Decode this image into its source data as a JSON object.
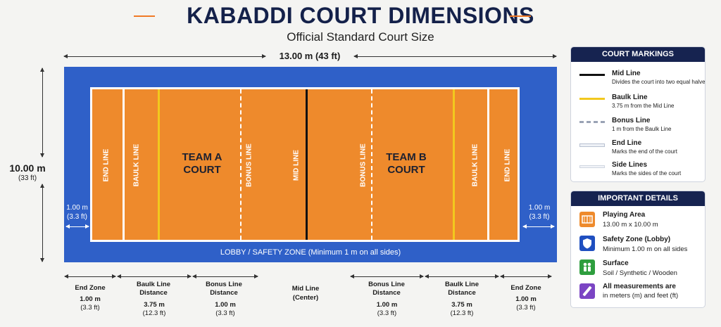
{
  "header": {
    "title": "KABADDI COURT DIMENSIONS",
    "subtitle": "Official Standard Court Size"
  },
  "dimensions": {
    "length": "13.00 m (43 ft)",
    "width_value": "10.00 m",
    "width_ft": "(33 ft)",
    "lobby_left_m": "1.00 m",
    "lobby_left_ft": "(3.3 ft)",
    "lobby_right_m": "1.00 m",
    "lobby_right_ft": "(3.3 ft)"
  },
  "court": {
    "lines": {
      "end_left": "END LINE",
      "baulk_left": "BAULK LINE",
      "bonus_left": "BONUS LINE",
      "mid": "MID LINE",
      "bonus_right": "BONUS LINE",
      "baulk_right": "BAULK LINE",
      "end_right": "END LINE"
    },
    "team_a": "TEAM A COURT",
    "team_b": "TEAM B COURT",
    "lobby": "LOBBY / SAFETY ZONE (Minimum 1 m on all sides)",
    "colors": {
      "lobby": "#2f60c8",
      "playing_area": "#ee8a2c",
      "mid_line": "#111111",
      "baulk_line": "#f2c81e",
      "boundary": "#ffffff"
    }
  },
  "segments": [
    {
      "label": "End Zone",
      "value": "1.00 m",
      "ft": "(3.3 ft)"
    },
    {
      "label": "Baulk Line Distance",
      "value": "3.75 m",
      "ft": "(12.3 ft)"
    },
    {
      "label": "Bonus Line Distance",
      "value": "1.00 m",
      "ft": "(3.3 ft)"
    },
    {
      "label": "Mid Line",
      "sub": "(Center)"
    },
    {
      "label": "Bonus Line Distance",
      "value": "1.00 m",
      "ft": "(3.3 ft)"
    },
    {
      "label": "Baulk Line Distance",
      "value": "3.75 m",
      "ft": "(12.3 ft)"
    },
    {
      "label": "End Zone",
      "value": "1.00 m",
      "ft": "(3.3 ft)"
    }
  ],
  "legend": {
    "title": "COURT MARKINGS",
    "items": [
      {
        "name": "Mid Line",
        "desc": "Divides the court into two equal halves",
        "color": "#111111"
      },
      {
        "name": "Baulk Line",
        "desc": "3.75 m from the Mid Line",
        "color": "#f2c81e"
      },
      {
        "name": "Bonus Line",
        "desc": "1 m from the Baulk Line",
        "color": "#9aa3b5"
      },
      {
        "name": "End Line",
        "desc": "Marks the end of the court",
        "color": "#b8c0d0"
      },
      {
        "name": "Side Lines",
        "desc": "Marks the sides of the court",
        "color": "#cfd5e0"
      }
    ]
  },
  "details": {
    "title": "IMPORTANT DETAILS",
    "items": [
      {
        "name": "Playing Area",
        "desc": "13.00 m x 10.00 m",
        "icon": "court-icon",
        "color": "#ee8a2c"
      },
      {
        "name": "Safety Zone (Lobby)",
        "desc": "Minimum 1.00 m on all sides",
        "icon": "shield-icon",
        "color": "#1f4fc0"
      },
      {
        "name": "Surface",
        "desc": "Soil / Synthetic / Wooden",
        "icon": "people-icon",
        "color": "#2e9e3e"
      },
      {
        "name": "All measurements are",
        "desc": "in meters (m) and feet (ft)",
        "icon": "ruler-icon",
        "color": "#7b45c4"
      }
    ]
  }
}
